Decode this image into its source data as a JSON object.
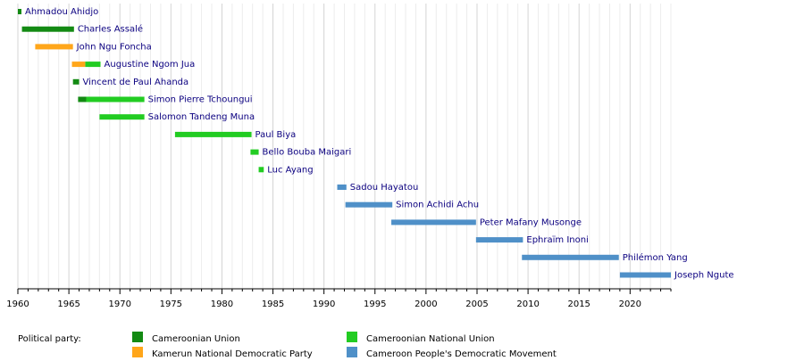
{
  "chart_data": {
    "type": "timeline",
    "categories": [
      "Ahmadou Ahidjo",
      "Charles Assalé",
      "John Ngu Foncha",
      "Augustine Ngom Jua",
      "Vincent de Paul Ahanda",
      "Simon Pierre Tchoungui",
      "Salomon Tandeng Muna",
      "Paul Biya",
      "Bello Bouba Maigari",
      "Luc Ayang",
      "Sadou Hayatou",
      "Simon Achidi Achu",
      "Peter Mafany Musonge",
      "Ephraïm Inoni",
      "Philémon Yang",
      "Joseph Ngute"
    ],
    "legend_title": "Political party:",
    "series": [
      {
        "name": "Cameroonian Union",
        "color": "#138a13",
        "start": [
          1960.0,
          1960.4,
          null,
          null,
          1965.4,
          1965.9,
          null,
          null,
          null,
          null,
          null,
          null,
          null,
          null,
          null,
          null
        ],
        "end": [
          1960.35,
          1965.5,
          null,
          null,
          1966.0,
          1966.7,
          null,
          null,
          null,
          null,
          null,
          null,
          null,
          null,
          null,
          null
        ]
      },
      {
        "name": "Cameroonian National Union",
        "color": "#22cc22",
        "start": [
          null,
          null,
          null,
          1966.6,
          null,
          1966.7,
          1968.0,
          1975.4,
          1982.8,
          1983.6,
          null,
          null,
          null,
          null,
          null,
          null
        ],
        "end": [
          null,
          null,
          null,
          1968.1,
          null,
          1972.4,
          1972.4,
          1982.9,
          1983.6,
          1984.1,
          null,
          null,
          null,
          null,
          null,
          null
        ]
      },
      {
        "name": "Kamerun National Democratic Party",
        "color": "#ffa61a",
        "start": [
          null,
          null,
          1961.7,
          1965.3,
          null,
          null,
          null,
          null,
          null,
          null,
          null,
          null,
          null,
          null,
          null,
          null
        ],
        "end": [
          null,
          null,
          1965.4,
          1966.6,
          null,
          null,
          null,
          null,
          null,
          null,
          null,
          null,
          null,
          null,
          null,
          null
        ]
      },
      {
        "name": "Cameroon People's Democratic Movement",
        "color": "#4f90c8",
        "start": [
          null,
          null,
          null,
          null,
          null,
          null,
          null,
          null,
          null,
          null,
          1991.3,
          1992.1,
          1996.6,
          2004.9,
          2009.4,
          2019.0
        ],
        "end": [
          null,
          null,
          null,
          null,
          null,
          null,
          null,
          null,
          null,
          null,
          1992.2,
          1996.7,
          2004.9,
          2009.5,
          2018.9,
          2024.0
        ]
      }
    ],
    "xlim": [
      1960,
      2024
    ],
    "xticks": [
      1960,
      1965,
      1970,
      1975,
      1980,
      1985,
      1990,
      1995,
      2000,
      2005,
      2010,
      2015,
      2020
    ],
    "minor_xticks": [
      1961,
      1962,
      1963,
      1964,
      1966,
      1967,
      1968,
      1969,
      1971,
      1972,
      1973,
      1974,
      1976,
      1977,
      1978,
      1979,
      1981,
      1982,
      1983,
      1984,
      1986,
      1987,
      1988,
      1989,
      1991,
      1992,
      1993,
      1994,
      1996,
      1997,
      1998,
      1999,
      2001,
      2002,
      2003,
      2004,
      2006,
      2007,
      2008,
      2009,
      2011,
      2012,
      2013,
      2014,
      2016,
      2017,
      2018,
      2019,
      2021,
      2022,
      2023,
      2024
    ],
    "grid": true
  }
}
